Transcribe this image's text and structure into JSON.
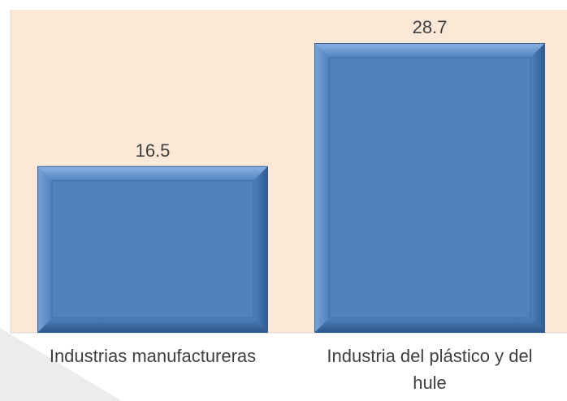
{
  "colors": {
    "plot_background": "#fce8d6",
    "bar_fill": "#4f81bd",
    "bar_edge_dark": "#2f5c93",
    "bar_edge_light": "#7aa3d6",
    "text": "#404040"
  },
  "chart_data": {
    "type": "bar",
    "categories": [
      "Industrias manufactureras",
      "Industria del plástico y del hule"
    ],
    "category_lines": [
      [
        "Industrias manufactureras"
      ],
      [
        "Industria del plástico y del",
        "hule"
      ]
    ],
    "values": [
      16.5,
      28.7
    ],
    "value_labels": [
      "16.5",
      "28.7"
    ],
    "title": "",
    "xlabel": "",
    "ylabel": "",
    "ylim": [
      0,
      32
    ],
    "grid": false,
    "legend": "none"
  }
}
